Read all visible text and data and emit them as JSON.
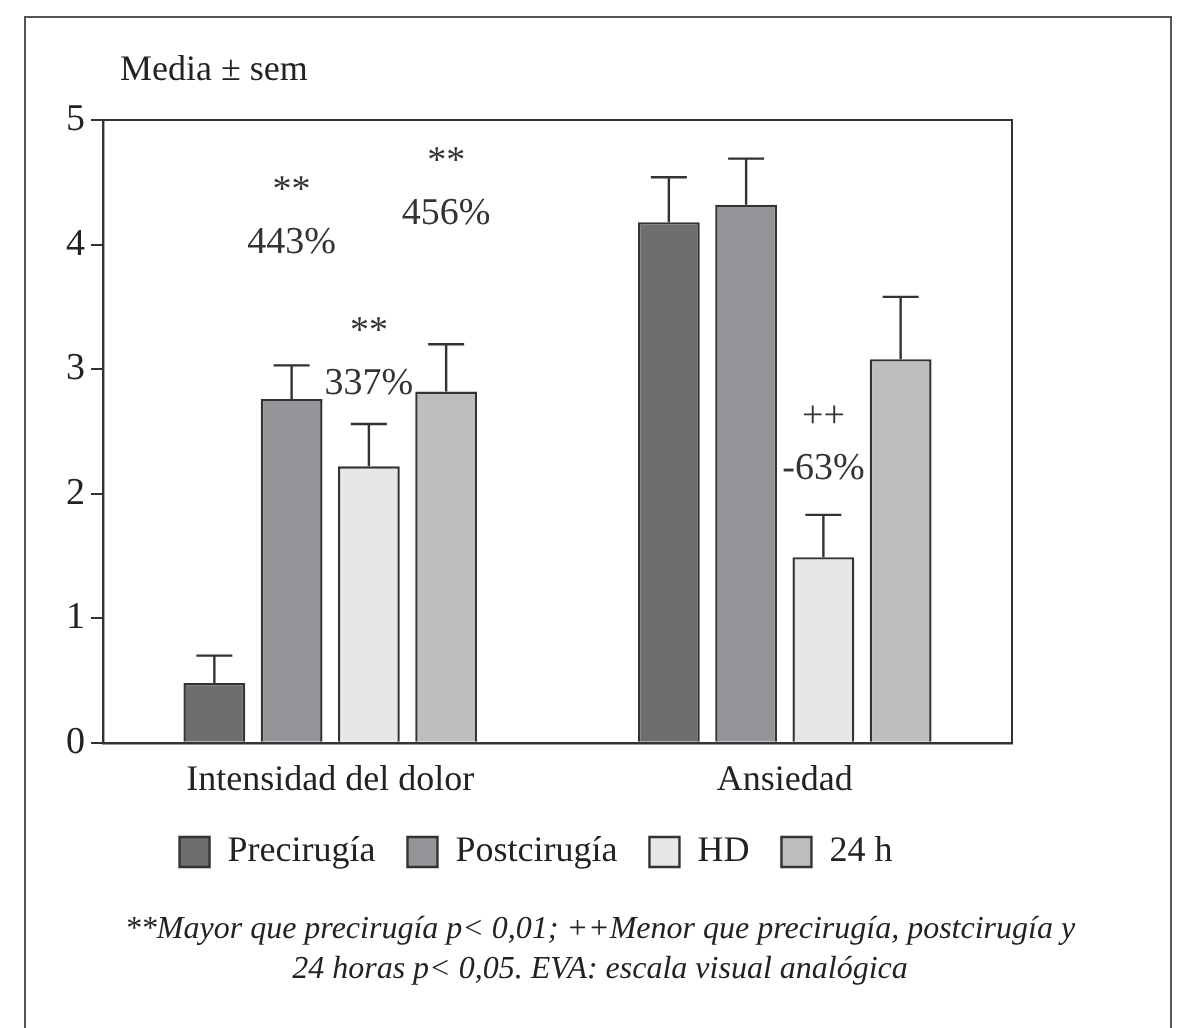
{
  "chart_data": {
    "type": "bar",
    "ylabel": "Media ± sem",
    "categories": [
      "Intensidad del dolor",
      "Ansiedad"
    ],
    "series": [
      {
        "name": "Precirugía",
        "color": "#6d6e70",
        "values": [
          0.48,
          4.18
        ],
        "errors": [
          0.22,
          0.36
        ]
      },
      {
        "name": "Postcirugía",
        "color": "#939598",
        "values": [
          2.76,
          4.32
        ],
        "errors": [
          0.27,
          0.37
        ]
      },
      {
        "name": "HD",
        "color": "#e6e7e8",
        "values": [
          2.22,
          1.49
        ],
        "errors": [
          0.34,
          0.34
        ]
      },
      {
        "name": "24 h",
        "color": "#bcbec0",
        "values": [
          2.82,
          3.08
        ],
        "errors": [
          0.38,
          0.5
        ]
      }
    ],
    "ylim": [
      0,
      5
    ],
    "yticks": [
      0,
      1,
      2,
      3,
      4,
      5
    ],
    "grid": false,
    "legend": "bottom",
    "annotations": [
      "**",
      "443%",
      "**",
      "337%",
      "**",
      "456%",
      "++",
      "-63%",
      "**Mayor que precirugía p< 0,01; ++Menor que precirugía, postcirugía y 24 horas p< 0,05. EVA: escala visual analógica"
    ]
  }
}
